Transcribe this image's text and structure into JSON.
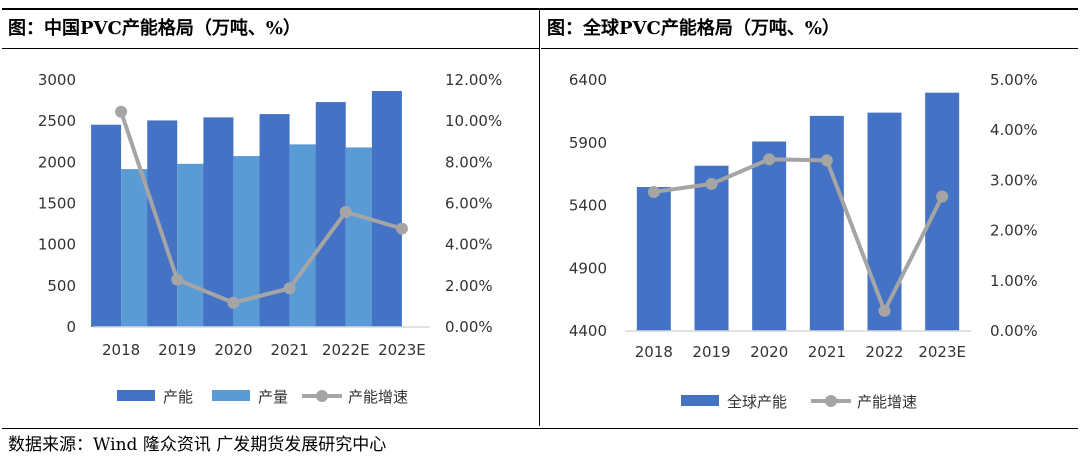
{
  "source": "数据来源：Wind 隆众资讯 广发期货发展研究中心",
  "chart_data": [
    {
      "type": "bar+line",
      "title": "图：中国PVC产能格局（万吨、%）",
      "categories": [
        "2018",
        "2019",
        "2020",
        "2021",
        "2022E",
        "2023E"
      ],
      "y_left": {
        "range": [
          0,
          3000
        ],
        "ticks": [
          "0",
          "500",
          "1000",
          "1500",
          "2000",
          "2500",
          "3000"
        ]
      },
      "y_right": {
        "range": [
          0,
          12
        ],
        "ticks": [
          "0.00%",
          "2.00%",
          "4.00%",
          "6.00%",
          "8.00%",
          "10.00%",
          "12.00%"
        ]
      },
      "series": [
        {
          "name": "产能",
          "kind": "bar",
          "axis": "left",
          "color": "#4472c4",
          "values": [
            2457,
            2509,
            2546,
            2586,
            2732,
            2866
          ]
        },
        {
          "name": "产量",
          "kind": "bar",
          "axis": "left",
          "color": "#5b9bd5",
          "values": [
            1918,
            1982,
            2076,
            2218,
            2181,
            null
          ]
        },
        {
          "name": "产能增速",
          "kind": "line",
          "axis": "right",
          "color": "#a5a5a5",
          "values": [
            10.46,
            2.3,
            1.18,
            1.88,
            5.59,
            4.78
          ]
        }
      ],
      "legend": "bottom",
      "grid": false
    },
    {
      "type": "bar+line",
      "title": "图：全球PVC产能格局（万吨、%）",
      "categories": [
        "2018",
        "2019",
        "2020",
        "2021",
        "2022",
        "2023E"
      ],
      "y_left": {
        "range": [
          4400,
          6400
        ],
        "ticks": [
          "4400",
          "4900",
          "5400",
          "5900",
          "6400"
        ]
      },
      "y_right": {
        "range": [
          0,
          5
        ],
        "ticks": [
          "0.00%",
          "1.00%",
          "2.00%",
          "3.00%",
          "4.00%",
          "5.00%"
        ]
      },
      "series": [
        {
          "name": "全球产能",
          "kind": "bar",
          "axis": "left",
          "color": "#4472c4",
          "values": [
            5547,
            5717,
            5910,
            6114,
            6140,
            6299
          ]
        },
        {
          "name": "产能增速",
          "kind": "line",
          "axis": "right",
          "color": "#a5a5a5",
          "values": [
            2.77,
            2.93,
            3.42,
            3.4,
            0.4,
            2.68
          ]
        }
      ],
      "legend": "bottom",
      "grid": false
    }
  ]
}
